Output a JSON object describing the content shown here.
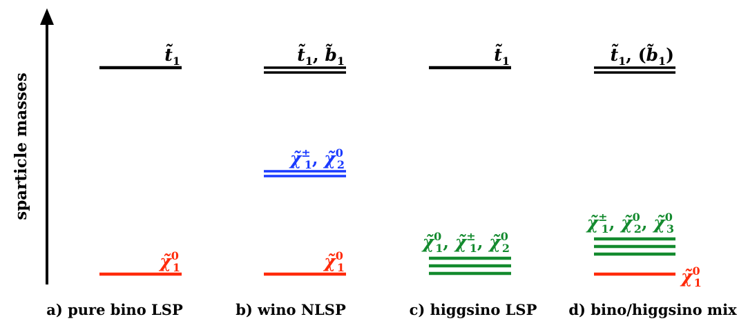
{
  "axis": {
    "label": "sparticle masses"
  },
  "colors": {
    "black": "#000000",
    "red": "#ff2a0a",
    "blue": "#1a3aff",
    "green": "#138a2e"
  },
  "panels": [
    {
      "caption": "a) pure bino LSP",
      "levels": [
        {
          "role": "stop",
          "lines": 1,
          "color": "black",
          "labels": [
            {
              "text": "t̃₁",
              "sym": "t",
              "sup": "",
              "sub": "1"
            }
          ]
        },
        {
          "role": "lsp",
          "lines": 1,
          "color": "red",
          "labels": [
            {
              "text": "χ̃₁⁰",
              "sym": "χ",
              "sup": "0",
              "sub": "1"
            }
          ]
        }
      ]
    },
    {
      "caption": "b) wino NLSP",
      "levels": [
        {
          "role": "stop-sbottom",
          "lines": 2,
          "color": "black",
          "labels": [
            {
              "text": "t̃₁",
              "sym": "t",
              "sup": "",
              "sub": "1"
            },
            {
              "text": "b̃₁",
              "sym": "b",
              "sup": "",
              "sub": "1"
            }
          ]
        },
        {
          "role": "wino",
          "lines": 2,
          "color": "blue",
          "labels": [
            {
              "text": "χ̃₁±",
              "sym": "χ",
              "sup": "±",
              "sub": "1"
            },
            {
              "text": "χ̃₂⁰",
              "sym": "χ",
              "sup": "0",
              "sub": "2"
            }
          ]
        },
        {
          "role": "lsp",
          "lines": 1,
          "color": "red",
          "labels": [
            {
              "text": "χ̃₁⁰",
              "sym": "χ",
              "sup": "0",
              "sub": "1"
            }
          ]
        }
      ]
    },
    {
      "caption": "c) higgsino LSP",
      "levels": [
        {
          "role": "stop",
          "lines": 1,
          "color": "black",
          "labels": [
            {
              "text": "t̃₁",
              "sym": "t",
              "sup": "",
              "sub": "1"
            }
          ]
        },
        {
          "role": "higgsinos",
          "lines": 3,
          "color": "green",
          "labels": [
            {
              "text": "χ̃₁⁰",
              "sym": "χ",
              "sup": "0",
              "sub": "1"
            },
            {
              "text": "χ̃₁±",
              "sym": "χ",
              "sup": "±",
              "sub": "1"
            },
            {
              "text": "χ̃₂⁰",
              "sym": "χ",
              "sup": "0",
              "sub": "2"
            }
          ]
        }
      ]
    },
    {
      "caption": "d) bino/higgsino mix",
      "levels": [
        {
          "role": "stop-sbottom",
          "lines": 2,
          "color": "black",
          "paren_last": true,
          "labels": [
            {
              "text": "t̃₁",
              "sym": "t",
              "sup": "",
              "sub": "1"
            },
            {
              "text": "(b̃₁)",
              "sym": "b",
              "sup": "",
              "sub": "1"
            }
          ]
        },
        {
          "role": "higgsinos",
          "lines": 3,
          "color": "green",
          "labels": [
            {
              "text": "χ̃₁±",
              "sym": "χ",
              "sup": "±",
              "sub": "1"
            },
            {
              "text": "χ̃₂⁰",
              "sym": "χ",
              "sup": "0",
              "sub": "2"
            },
            {
              "text": "χ̃₃⁰",
              "sym": "χ",
              "sup": "0",
              "sub": "3"
            }
          ]
        },
        {
          "role": "lsp",
          "lines": 1,
          "color": "red",
          "labels": [
            {
              "text": "χ̃₁⁰",
              "sym": "χ",
              "sup": "0",
              "sub": "1"
            }
          ]
        }
      ]
    }
  ]
}
